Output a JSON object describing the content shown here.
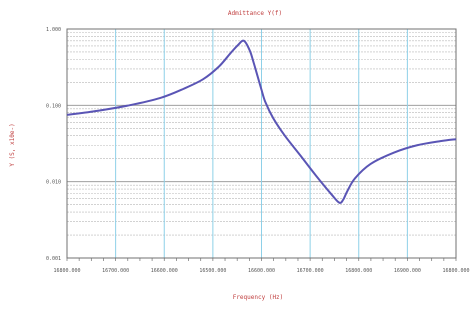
{
  "chart_data": {
    "type": "line",
    "title": "Admittance Y(f)",
    "xlabel": "Frequency (Hz)",
    "ylabel": "Y (S, x10e-)",
    "x_tick_labels": [
      "16800.000",
      "16700.000",
      "16600.000",
      "16500.000",
      "16600.000",
      "16700.000",
      "16800.000",
      "16900.000",
      "16800.000"
    ],
    "y_tick_labels": [
      "1.000",
      "0.100",
      "0.010",
      "0.001"
    ],
    "y_scale": "log",
    "grid": true,
    "series": [
      {
        "color": "#5a55b5",
        "x": [
          0,
          0.08,
          0.16,
          0.24,
          0.3,
          0.35,
          0.39,
          0.42,
          0.44,
          0.455,
          0.47,
          0.48,
          0.49,
          0.5,
          0.51,
          0.53,
          0.56,
          0.6,
          0.64,
          0.68,
          0.7,
          0.71,
          0.72,
          0.74,
          0.78,
          0.84,
          0.9,
          0.96,
          1.0
        ],
        "y": [
          0.075,
          0.085,
          0.1,
          0.125,
          0.165,
          0.22,
          0.32,
          0.48,
          0.62,
          0.7,
          0.52,
          0.36,
          0.24,
          0.16,
          0.11,
          0.068,
          0.04,
          0.022,
          0.012,
          0.0068,
          0.0053,
          0.0058,
          0.0074,
          0.011,
          0.017,
          0.024,
          0.03,
          0.034,
          0.036
        ]
      }
    ]
  }
}
